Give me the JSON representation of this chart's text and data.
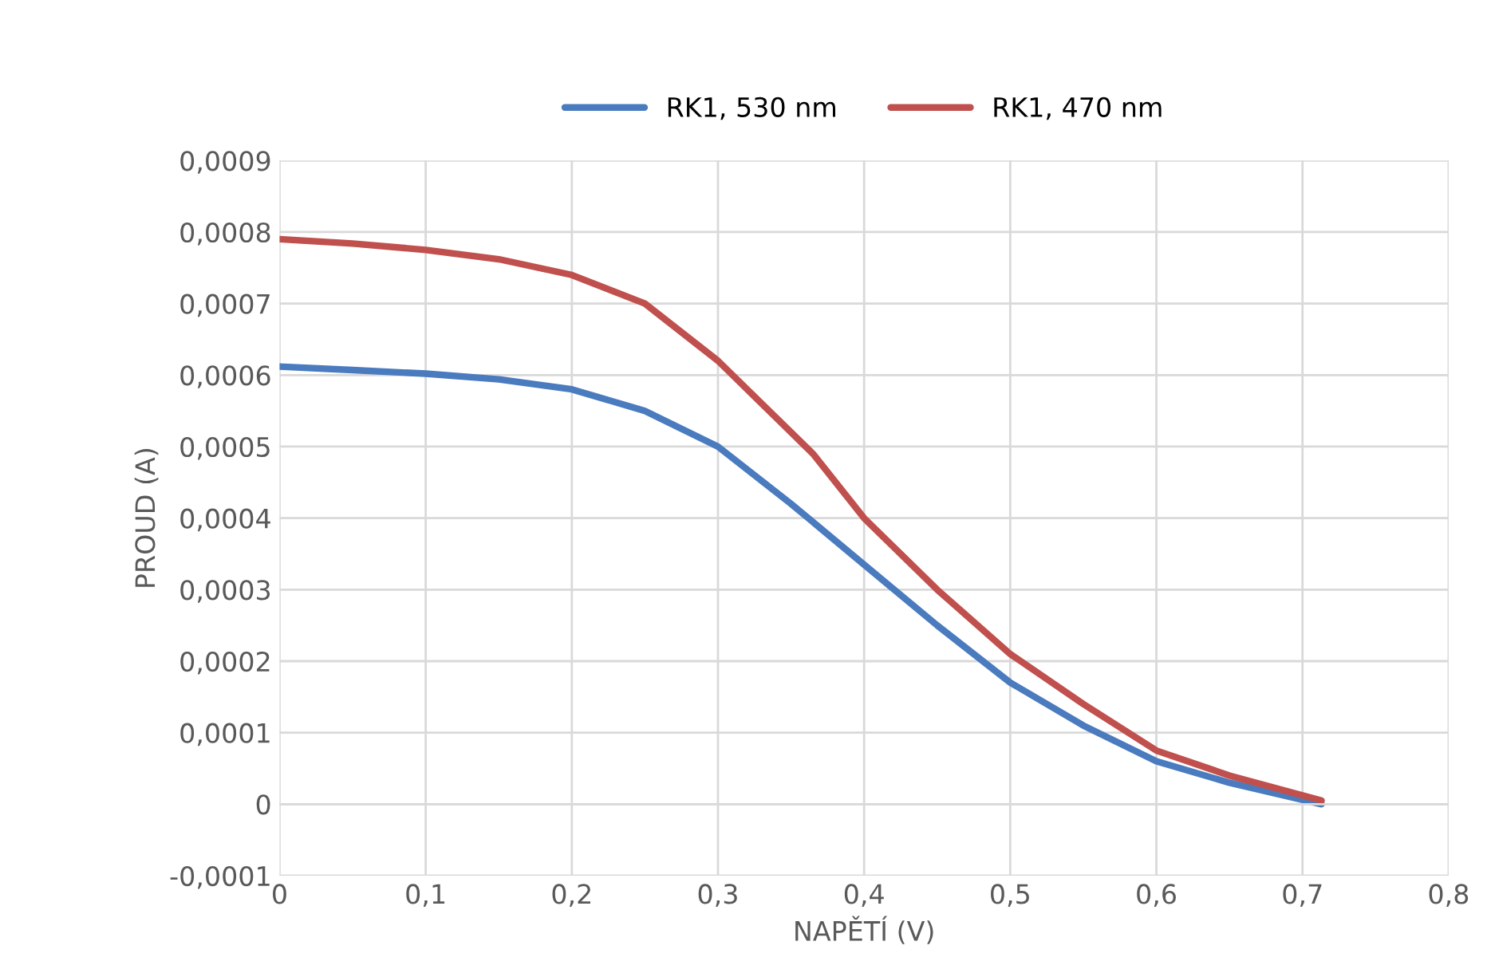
{
  "chart_data": {
    "type": "line",
    "xlabel": "NAPĚTÍ (V)",
    "ylabel": "PROUD (A)",
    "series": [
      {
        "name": "RK1, 530 nm",
        "color": "#4a7bbf",
        "x": [
          0,
          0.05,
          0.1,
          0.15,
          0.2,
          0.25,
          0.3,
          0.35,
          0.4,
          0.45,
          0.5,
          0.55,
          0.6,
          0.65,
          0.713
        ],
        "values": [
          0.000612,
          0.000607,
          0.000602,
          0.000594,
          0.00058,
          0.00055,
          0.0005,
          0.00042,
          0.000335,
          0.00025,
          0.00017,
          0.00011,
          6e-05,
          3e-05,
          0.0
        ]
      },
      {
        "name": "RK1, 470 nm",
        "color": "#c0504d",
        "x": [
          0,
          0.05,
          0.1,
          0.15,
          0.2,
          0.25,
          0.3,
          0.35,
          0.365,
          0.4,
          0.45,
          0.5,
          0.55,
          0.6,
          0.65,
          0.713
        ],
        "values": [
          0.00079,
          0.000784,
          0.000775,
          0.000762,
          0.00074,
          0.0007,
          0.00062,
          0.00052,
          0.00049,
          0.0004,
          0.0003,
          0.00021,
          0.00014,
          7.5e-05,
          4e-05,
          5e-06
        ]
      }
    ],
    "xlim": [
      0,
      0.8
    ],
    "xticks": [
      {
        "value": 0,
        "label": "0"
      },
      {
        "value": 0.1,
        "label": "0,1"
      },
      {
        "value": 0.2,
        "label": "0,2"
      },
      {
        "value": 0.3,
        "label": "0,3"
      },
      {
        "value": 0.4,
        "label": "0,4"
      },
      {
        "value": 0.5,
        "label": "0,5"
      },
      {
        "value": 0.6,
        "label": "0,6"
      },
      {
        "value": 0.7,
        "label": "0,7"
      },
      {
        "value": 0.8,
        "label": "0,8"
      }
    ],
    "ylim": [
      -0.0001,
      0.0009
    ],
    "yticks": [
      {
        "value": -0.0001,
        "label": "-0,0001"
      },
      {
        "value": 0,
        "label": "0"
      },
      {
        "value": 0.0001,
        "label": "0,0001"
      },
      {
        "value": 0.0002,
        "label": "0,0002"
      },
      {
        "value": 0.0003,
        "label": "0,0003"
      },
      {
        "value": 0.0004,
        "label": "0,0004"
      },
      {
        "value": 0.0005,
        "label": "0,0005"
      },
      {
        "value": 0.0006,
        "label": "0,0006"
      },
      {
        "value": 0.0007,
        "label": "0,0007"
      },
      {
        "value": 0.0008,
        "label": "0,0008"
      },
      {
        "value": 0.0009,
        "label": "0,0009"
      }
    ],
    "grid": true,
    "legend": "top",
    "marker": "none",
    "line_style": "solid"
  }
}
